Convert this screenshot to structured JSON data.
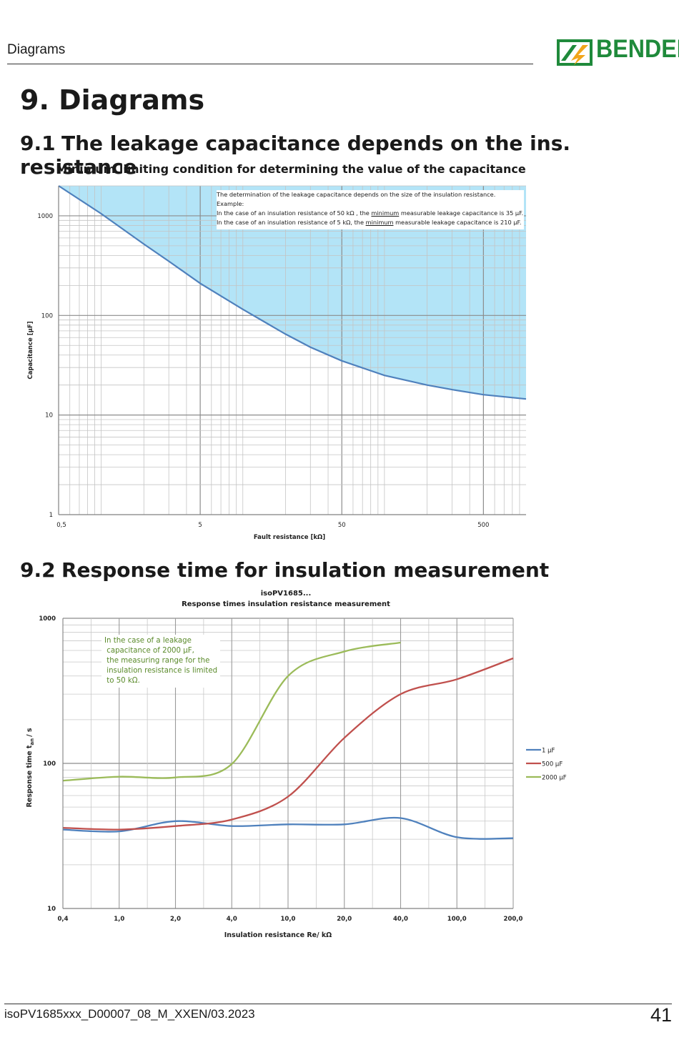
{
  "header": {
    "title": "Diagrams",
    "logo_text": "BENDER"
  },
  "heading": "9. Diagrams",
  "section1": {
    "number": "9.1",
    "title": "The leakage capacitance depends on the ins. resistance"
  },
  "section2": {
    "number": "9.2",
    "title": "Response time for insulation measurement"
  },
  "notes": {
    "chart1_line1": "The determination of the leakage capacitance depends on the size of the insulation resistance.",
    "chart1_line2": "Example:",
    "chart1_line3_a": "In the case of an insulation resistance of 50 kΩ , the ",
    "chart1_line3_u": "minimum",
    "chart1_line3_b": " measurable leakage capacitance is 35 µF.",
    "chart1_line4_a": "In the case of an insulation resistance of 5 kΩ, the ",
    "chart1_line4_u": "minimum",
    "chart1_line4_b": " measurable leakage capacitance is 210 µF.",
    "chart2": "In the case of a leakage\n capacitance of 2000 µF,\n the measuring range for the\n insulation resistance is limited\n to 50 kΩ."
  },
  "colors": {
    "fill": "#b3e4f7",
    "curve": "#4f81bd",
    "s1": "#4f81bd",
    "s2": "#c0504d",
    "s3": "#9bbb59",
    "note2_text": "#5a8a2a",
    "logo": "#1f8a3b"
  },
  "footer": {
    "doc_id": "isoPV1685xxx_D00007_08_M_XXEN/03.2023",
    "page": "41"
  },
  "chart_data": [
    {
      "type": "area",
      "title": "Minimum limiting condition for determining the value of the capacitance",
      "xlabel": "Fault resistance [kΩ]",
      "ylabel": "Capacitance [µF]",
      "x_scale": "log",
      "y_scale": "log",
      "xlim": [
        0.5,
        1000
      ],
      "ylim": [
        1,
        2000
      ],
      "x_ticks": [
        "0,5",
        "5",
        "50",
        "500"
      ],
      "y_ticks": [
        "1",
        "10",
        "100",
        "1000"
      ],
      "grid": true,
      "series": [
        {
          "x": [
            0.5,
            1,
            2,
            3,
            5,
            10,
            20,
            30,
            50,
            100,
            200,
            300,
            500,
            1000
          ],
          "y": [
            2000,
            1050,
            520,
            350,
            210,
            115,
            65,
            48,
            35,
            25,
            20,
            18,
            16,
            14.5
          ]
        }
      ]
    },
    {
      "type": "line",
      "title": "isoPV1685...",
      "subtitle": "Response times insulation resistance measurement",
      "xlabel": "Insulation resistance Re/ kΩ",
      "ylabel_main": "Response time t",
      "ylabel_sub": "an",
      "ylabel_unit": "/ s",
      "y_scale": "log",
      "ylim": [
        10,
        1000
      ],
      "y_ticks": [
        "10",
        "100",
        "1000"
      ],
      "categories": [
        "0,4",
        "1,0",
        "2,0",
        "4,0",
        "10,0",
        "20,0",
        "40,0",
        "100,0",
        "200,0"
      ],
      "legend": "right",
      "series": [
        {
          "name": "1 µF",
          "values": [
            35,
            34,
            40,
            37,
            38,
            38,
            42,
            31,
            30.5
          ]
        },
        {
          "name": "500 µF",
          "values": [
            36,
            35,
            37,
            41,
            59,
            150,
            300,
            380,
            530
          ]
        },
        {
          "name": "2000 µF",
          "values": [
            76,
            81,
            80,
            99,
            400,
            590,
            680,
            null,
            null
          ]
        }
      ]
    }
  ]
}
